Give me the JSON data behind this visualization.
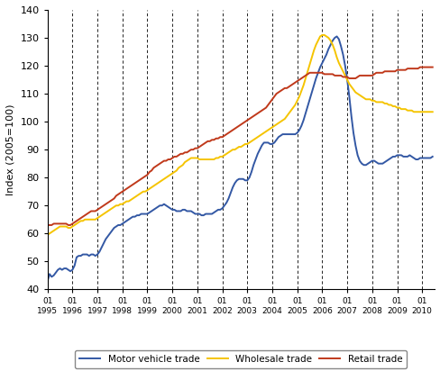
{
  "title": "",
  "ylabel": "Index (2005=100)",
  "ylim": [
    40,
    140
  ],
  "yticks": [
    40,
    50,
    60,
    70,
    80,
    90,
    100,
    110,
    120,
    130,
    140
  ],
  "start_year": 1995,
  "n_months": 186,
  "motor_vehicle": [
    43.0,
    45.5,
    44.5,
    45.0,
    46.0,
    47.0,
    47.5,
    47.0,
    47.5,
    47.5,
    47.0,
    46.5,
    47.0,
    48.5,
    51.5,
    52.0,
    52.0,
    52.5,
    52.5,
    52.5,
    52.0,
    52.5,
    52.5,
    52.0,
    52.5,
    53.5,
    55.0,
    56.5,
    58.0,
    59.0,
    60.0,
    61.0,
    62.0,
    62.5,
    63.0,
    63.0,
    63.5,
    64.0,
    64.5,
    65.0,
    65.5,
    66.0,
    66.0,
    66.5,
    66.5,
    67.0,
    67.0,
    67.0,
    67.0,
    67.5,
    68.0,
    68.5,
    69.0,
    69.5,
    70.0,
    70.0,
    70.5,
    70.0,
    69.5,
    69.0,
    68.5,
    68.5,
    68.0,
    68.0,
    68.0,
    68.5,
    68.5,
    68.0,
    68.0,
    68.0,
    67.5,
    67.0,
    67.0,
    67.0,
    66.5,
    66.5,
    67.0,
    67.0,
    67.0,
    67.0,
    67.5,
    68.0,
    68.5,
    68.5,
    69.0,
    70.0,
    71.0,
    72.5,
    74.5,
    76.5,
    78.0,
    79.0,
    79.5,
    79.5,
    79.5,
    79.0,
    79.0,
    80.0,
    82.0,
    84.5,
    86.5,
    88.5,
    90.0,
    91.5,
    92.5,
    92.5,
    92.5,
    92.0,
    92.0,
    92.5,
    93.5,
    94.5,
    95.0,
    95.5,
    95.5,
    95.5,
    95.5,
    95.5,
    95.5,
    95.5,
    96.0,
    97.0,
    98.5,
    100.5,
    103.0,
    105.5,
    108.0,
    110.5,
    113.0,
    115.5,
    117.5,
    119.5,
    121.0,
    122.5,
    124.0,
    126.0,
    127.5,
    129.0,
    130.0,
    130.5,
    129.5,
    127.0,
    124.0,
    120.0,
    115.0,
    109.0,
    102.0,
    96.0,
    91.5,
    88.0,
    86.0,
    85.0,
    84.5,
    84.5,
    85.0,
    85.5,
    86.0,
    86.0,
    85.5,
    85.0,
    85.0,
    85.0,
    85.5,
    86.0,
    86.5,
    87.0,
    87.5,
    87.5,
    88.0,
    88.0,
    88.0,
    87.5,
    87.5,
    87.5,
    88.0,
    87.5,
    87.0,
    86.5,
    86.5,
    87.0,
    87.0,
    87.0,
    87.0,
    87.0,
    87.0,
    87.5
  ],
  "wholesale": [
    59.5,
    60.0,
    60.5,
    61.0,
    61.5,
    62.0,
    62.5,
    62.5,
    62.5,
    62.5,
    62.0,
    62.0,
    62.5,
    63.0,
    63.5,
    64.0,
    64.5,
    64.5,
    65.0,
    65.0,
    65.0,
    65.0,
    65.0,
    65.0,
    65.5,
    66.0,
    66.5,
    67.0,
    67.5,
    68.0,
    68.5,
    69.0,
    69.5,
    70.0,
    70.0,
    70.5,
    70.5,
    71.0,
    71.5,
    71.5,
    72.0,
    72.5,
    73.0,
    73.5,
    74.0,
    74.5,
    75.0,
    75.0,
    75.5,
    76.0,
    76.5,
    77.0,
    77.5,
    78.0,
    78.5,
    79.0,
    79.5,
    80.0,
    80.5,
    81.0,
    81.5,
    82.0,
    82.5,
    83.5,
    84.0,
    84.5,
    85.5,
    86.0,
    86.5,
    87.0,
    87.0,
    87.0,
    87.0,
    86.5,
    86.5,
    86.5,
    86.5,
    86.5,
    86.5,
    86.5,
    86.5,
    87.0,
    87.0,
    87.5,
    87.5,
    88.0,
    88.5,
    89.0,
    89.5,
    90.0,
    90.0,
    90.5,
    91.0,
    91.0,
    91.5,
    92.0,
    92.0,
    92.5,
    93.0,
    93.5,
    94.0,
    94.5,
    95.0,
    95.5,
    96.0,
    96.5,
    97.0,
    97.5,
    98.0,
    98.5,
    99.0,
    99.5,
    100.0,
    100.5,
    101.0,
    102.0,
    103.0,
    104.0,
    105.0,
    106.0,
    107.5,
    109.0,
    111.0,
    113.0,
    115.5,
    118.0,
    120.5,
    123.0,
    125.5,
    127.5,
    129.0,
    130.5,
    131.0,
    131.0,
    130.5,
    130.0,
    129.0,
    127.5,
    125.5,
    123.0,
    121.0,
    119.5,
    118.0,
    116.5,
    115.0,
    113.5,
    112.5,
    111.5,
    110.5,
    110.0,
    109.5,
    109.0,
    108.5,
    108.0,
    108.0,
    108.0,
    107.5,
    107.5,
    107.0,
    107.0,
    107.0,
    107.0,
    106.5,
    106.5,
    106.0,
    106.0,
    105.5,
    105.5,
    105.0,
    105.0,
    104.5,
    104.5,
    104.5,
    104.0,
    104.0,
    104.0,
    103.5,
    103.5,
    103.5,
    103.5,
    103.5,
    103.5,
    103.5,
    103.5,
    103.5,
    103.5
  ],
  "retail": [
    63.0,
    63.0,
    63.0,
    63.5,
    63.5,
    63.5,
    63.5,
    63.5,
    63.5,
    63.5,
    63.0,
    63.0,
    63.5,
    64.0,
    64.5,
    65.0,
    65.5,
    66.0,
    66.5,
    67.0,
    67.5,
    68.0,
    68.0,
    68.0,
    68.5,
    69.0,
    69.5,
    70.0,
    70.5,
    71.0,
    71.5,
    72.0,
    72.5,
    73.5,
    74.0,
    74.5,
    75.0,
    75.5,
    76.0,
    76.5,
    77.0,
    77.5,
    78.0,
    78.5,
    79.0,
    79.5,
    80.0,
    80.5,
    81.0,
    82.0,
    82.5,
    83.5,
    84.0,
    84.5,
    85.0,
    85.5,
    86.0,
    86.0,
    86.5,
    86.5,
    87.0,
    87.5,
    87.5,
    88.0,
    88.5,
    88.5,
    89.0,
    89.0,
    89.5,
    90.0,
    90.0,
    90.5,
    90.5,
    91.0,
    91.5,
    92.0,
    92.5,
    93.0,
    93.0,
    93.5,
    93.5,
    94.0,
    94.0,
    94.5,
    94.5,
    95.0,
    95.5,
    96.0,
    96.5,
    97.0,
    97.5,
    98.0,
    98.5,
    99.0,
    99.5,
    100.0,
    100.5,
    101.0,
    101.5,
    102.0,
    102.5,
    103.0,
    103.5,
    104.0,
    104.5,
    105.0,
    106.0,
    107.0,
    108.0,
    109.0,
    110.0,
    110.5,
    111.0,
    111.5,
    112.0,
    112.0,
    112.5,
    113.0,
    113.5,
    114.0,
    114.5,
    115.0,
    115.5,
    116.0,
    116.5,
    117.0,
    117.5,
    117.5,
    117.5,
    117.5,
    117.5,
    117.5,
    117.5,
    117.0,
    117.0,
    117.0,
    117.0,
    117.0,
    116.5,
    116.5,
    116.5,
    116.5,
    116.0,
    116.0,
    116.0,
    115.5,
    115.5,
    115.5,
    115.5,
    116.0,
    116.5,
    116.5,
    116.5,
    116.5,
    116.5,
    116.5,
    116.5,
    117.0,
    117.5,
    117.5,
    117.5,
    117.5,
    118.0,
    118.0,
    118.0,
    118.0,
    118.0,
    118.0,
    118.5,
    118.5,
    118.5,
    118.5,
    118.5,
    119.0,
    119.0,
    119.0,
    119.0,
    119.0,
    119.0,
    119.5,
    119.5,
    119.5,
    119.5,
    119.5,
    119.5,
    119.5
  ],
  "motor_color": "#3358a4",
  "wholesale_color": "#f5c400",
  "retail_color": "#c0391b",
  "legend_labels": [
    "Motor vehicle trade",
    "Wholesale trade",
    "Retail trade"
  ],
  "bg_color": "#ffffff"
}
